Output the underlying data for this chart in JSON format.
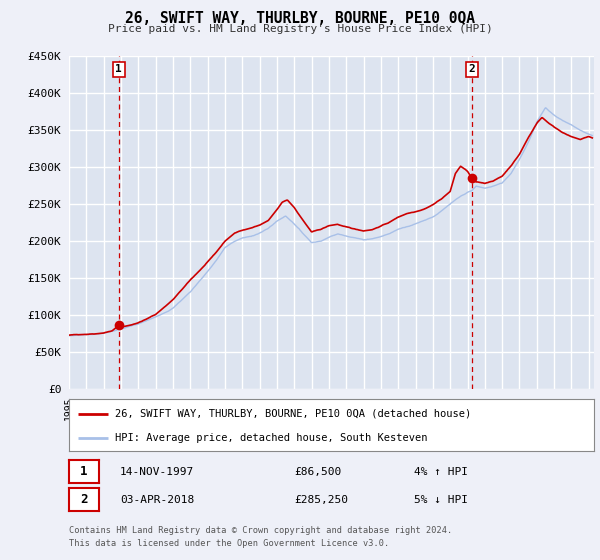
{
  "title": "26, SWIFT WAY, THURLBY, BOURNE, PE10 0QA",
  "subtitle": "Price paid vs. HM Land Registry's House Price Index (HPI)",
  "ylim": [
    0,
    450000
  ],
  "xlim_start": 1995.0,
  "xlim_end": 2025.3,
  "yticks": [
    0,
    50000,
    100000,
    150000,
    200000,
    250000,
    300000,
    350000,
    400000,
    450000
  ],
  "ytick_labels": [
    "£0",
    "£50K",
    "£100K",
    "£150K",
    "£200K",
    "£250K",
    "£300K",
    "£350K",
    "£400K",
    "£450K"
  ],
  "background_color": "#eef0f8",
  "plot_bg_color": "#dde4f0",
  "grid_color": "#ffffff",
  "hpi_color": "#a8c0e8",
  "price_color": "#cc0000",
  "vline_color": "#cc0000",
  "marker_color": "#cc0000",
  "sale1_year": 1997.87,
  "sale1_price": 86500,
  "sale1_label": "1",
  "sale1_date": "14-NOV-1997",
  "sale1_pct": "4% ↑ HPI",
  "sale2_year": 2018.25,
  "sale2_price": 285250,
  "sale2_label": "2",
  "sale2_date": "03-APR-2018",
  "sale2_pct": "5% ↓ HPI",
  "legend_line1": "26, SWIFT WAY, THURLBY, BOURNE, PE10 0QA (detached house)",
  "legend_line2": "HPI: Average price, detached house, South Kesteven",
  "footer1": "Contains HM Land Registry data © Crown copyright and database right 2024.",
  "footer2": "This data is licensed under the Open Government Licence v3.0."
}
